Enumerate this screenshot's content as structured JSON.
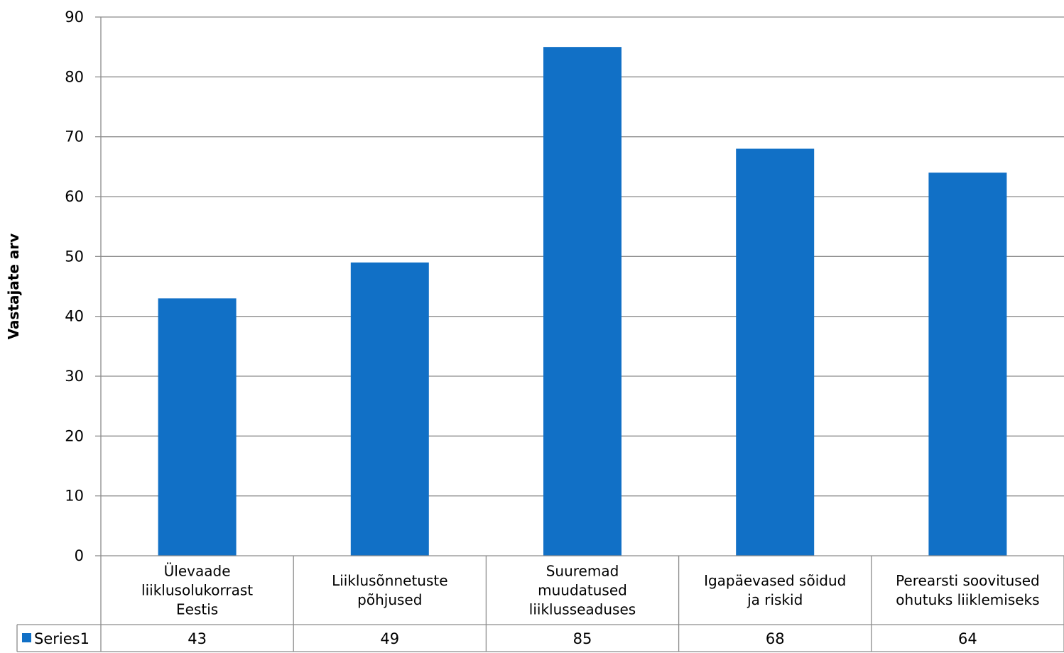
{
  "chart_data": {
    "type": "bar",
    "ylabel": "Vastajate arv",
    "ylim": [
      0,
      90
    ],
    "yticks": [
      0,
      10,
      20,
      30,
      40,
      50,
      60,
      70,
      80,
      90
    ],
    "grid": true,
    "categories": [
      [
        "Ülevaade",
        "liiklusolukorrast",
        "Eestis"
      ],
      [
        "Liiklusõnnetuste",
        "põhjused"
      ],
      [
        "Suuremad",
        "muudatused",
        "liiklusseaduses"
      ],
      [
        "Igapäevased sõidud",
        "ja riskid"
      ],
      [
        "Perearsti soovitused",
        "ohutuks liiklemiseks"
      ]
    ],
    "series": [
      {
        "name": "Series1",
        "values": [
          43,
          49,
          85,
          68,
          64
        ],
        "color": "#1170C6"
      }
    ],
    "data_table": true
  }
}
